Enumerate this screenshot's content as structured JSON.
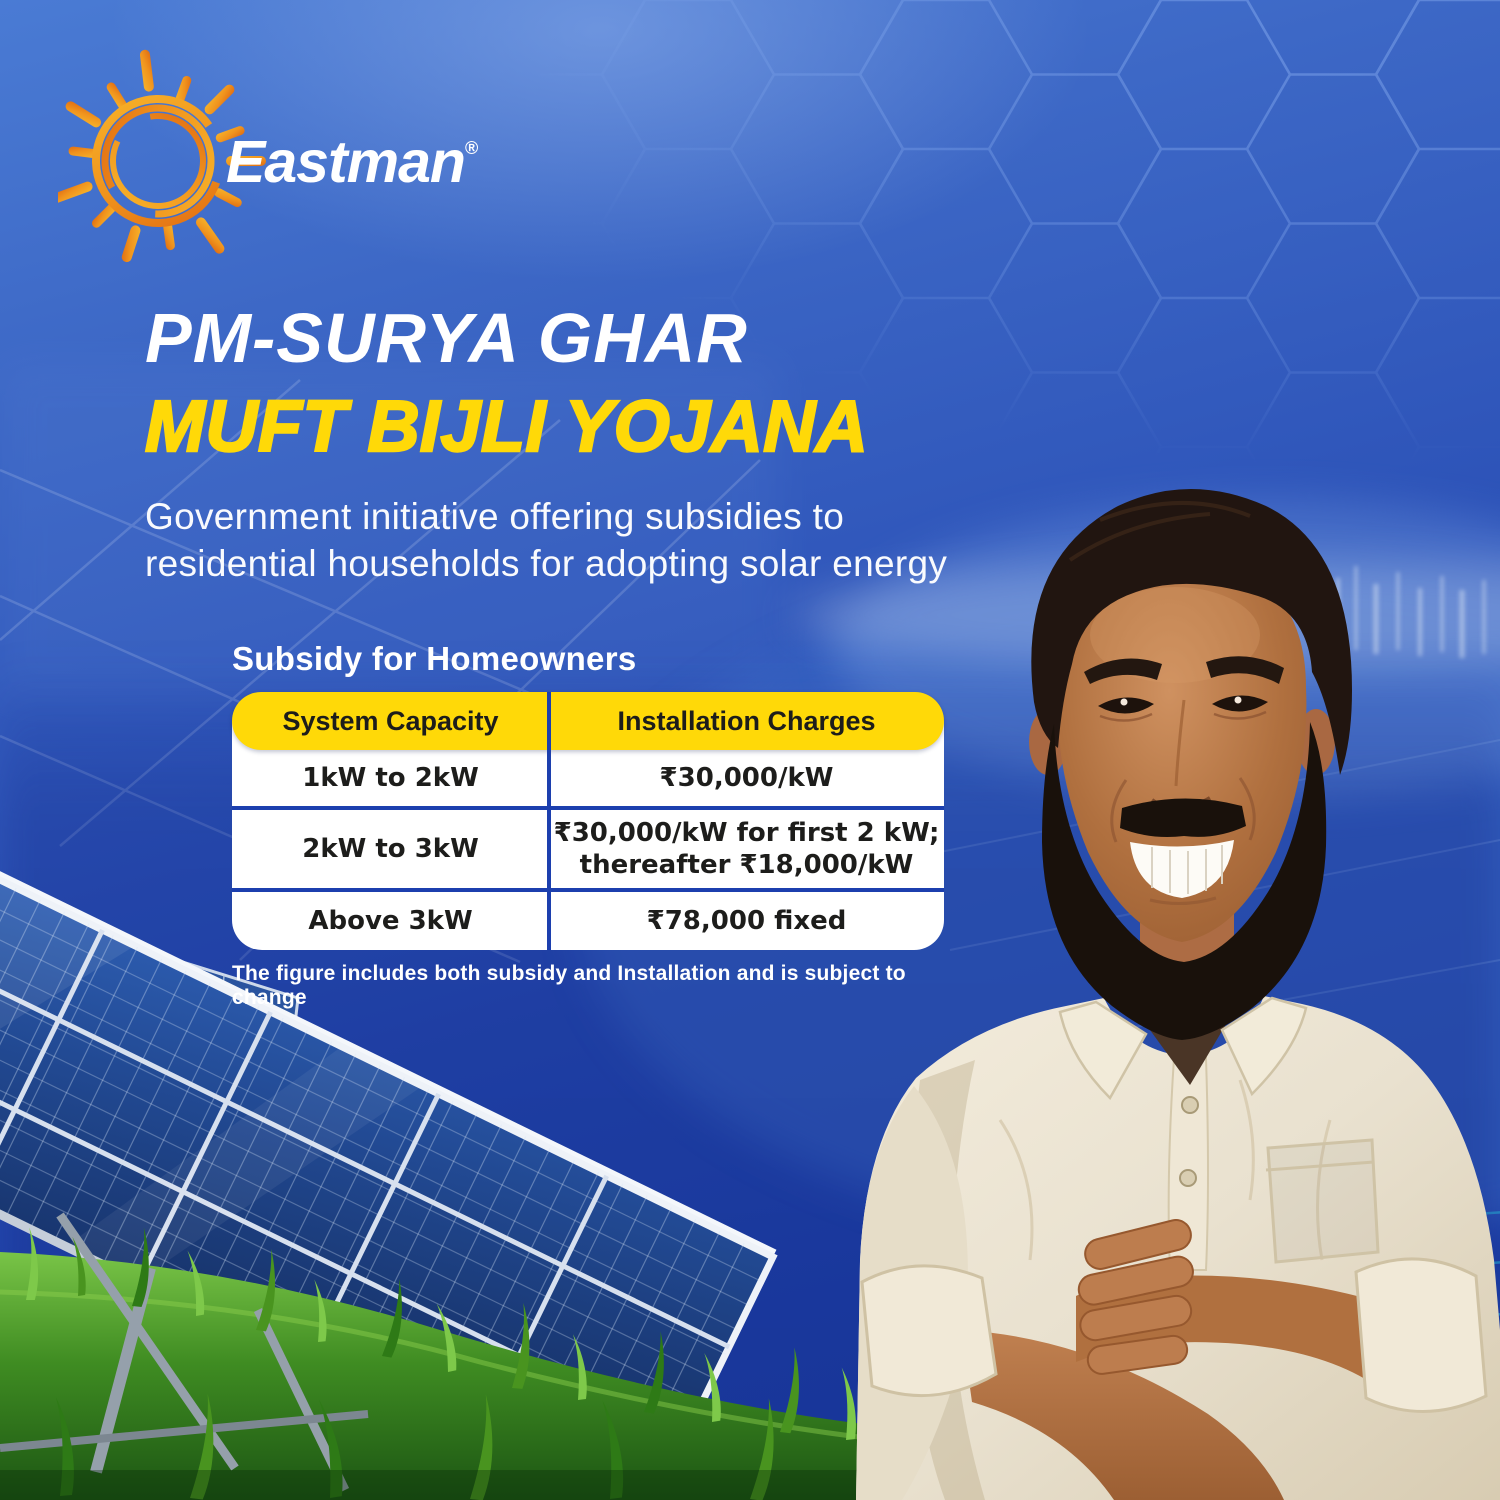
{
  "brand": {
    "wordmark": "Eastman",
    "registered_mark": "®",
    "logo_icon": "sun-swirl-icon"
  },
  "hero": {
    "title_line1": "PM-SURYA GHAR",
    "title_line2": "MUFT BIJLI YOJANA",
    "subtitle_line1": "Government initiative offering subsidies to",
    "subtitle_line2": "residential households for adopting solar energy"
  },
  "subsidy": {
    "heading": "Subsidy for Homeowners",
    "table": {
      "headers": [
        "System Capacity",
        "Installation Charges"
      ],
      "rows": [
        {
          "capacity": "1kW to 2kW",
          "charges1": "₹30,000/kW"
        },
        {
          "capacity": "2kW to 3kW",
          "charges1": "₹30,000/kW for first 2 kW;",
          "charges2": "thereafter ₹18,000/kW"
        },
        {
          "capacity": "Above 3kW",
          "charges1": "₹78,000 fixed"
        }
      ]
    },
    "footnote": "The figure includes both subsidy and Installation and is subject to change"
  },
  "colors": {
    "accent_yellow": "#FFD908",
    "table_divider_blue": "#1C3FAE",
    "background_top_blue": "#4A7BD4",
    "background_deep_blue": "#1B3CA2",
    "sun_orange": "#F29B1D",
    "grass_green": "#4F9A2A",
    "shirt_cream": "#E9E1CF",
    "teal_line": "#29C4DE",
    "text_dark": "#1D1D1B",
    "text_white": "#FFFFFF"
  },
  "illustrations": {
    "hexagon_pattern": "hexagon-pattern-decoration",
    "solar_panels": "solar-panels-illustration",
    "homeowner": "homeowner-photo",
    "landscape": "landscape-decoration"
  }
}
